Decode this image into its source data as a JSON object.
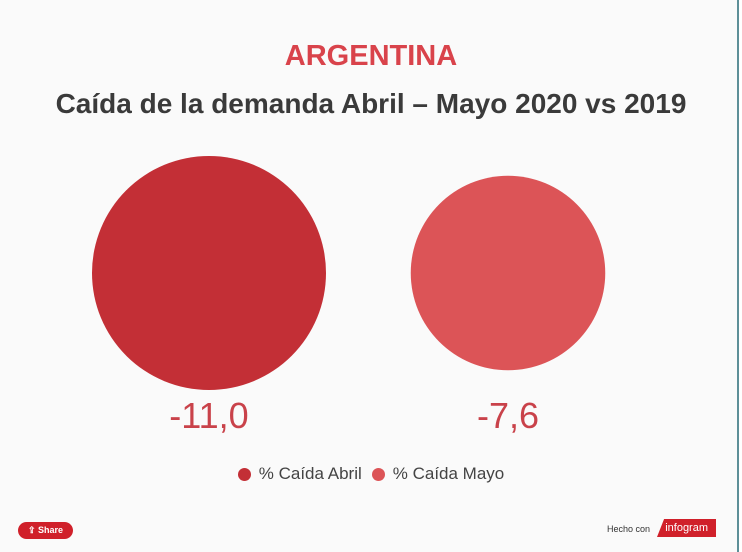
{
  "chart_data": {
    "type": "bubble",
    "kicker": "ARGENTINA",
    "title": "Caída de la demanda Abril – Mayo 2020 vs 2019",
    "series": [
      {
        "name": "% Caída Abril",
        "value": -11.0,
        "label": "-11,0",
        "color": "#c32f36"
      },
      {
        "name": "% Caída Mayo",
        "value": -7.6,
        "label": "-7,6",
        "color": "#dc5457"
      }
    ],
    "label_color": "#c9424a",
    "legend_position": "bottom"
  },
  "footer": {
    "share_label": "Share",
    "made_with": "Hecho con",
    "brand": "infogram"
  }
}
